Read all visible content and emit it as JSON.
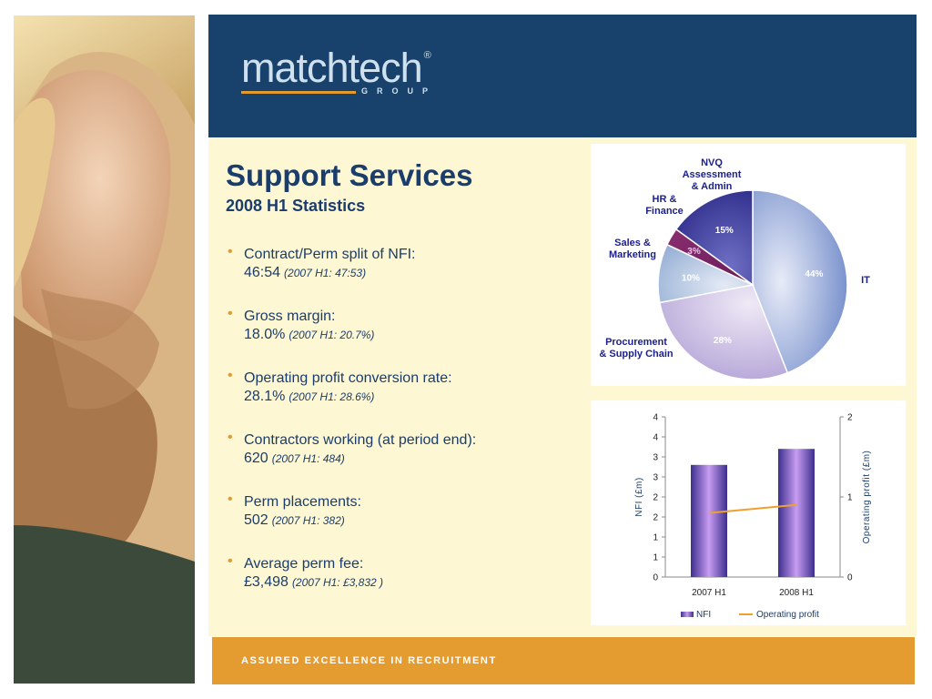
{
  "brand": {
    "logo_text": "matchtech",
    "logo_mark": "®",
    "logo_sub": "GROUP",
    "tagline": "ASSURED EXCELLENCE IN RECRUITMENT",
    "colors": {
      "navy": "#18426b",
      "orange": "#e29a2b",
      "cream": "#fdf7d4"
    }
  },
  "slide": {
    "title": "Support Services",
    "subtitle": "2008 H1 Statistics",
    "bullets": [
      {
        "label": "Contract/Perm split of NFI:",
        "value": "46:54",
        "note": "(2007 H1: 47:53)"
      },
      {
        "label": "Gross margin:",
        "value": "18.0%",
        "note": "(2007 H1: 20.7%)"
      },
      {
        "label": "Operating profit conversion rate:",
        "value": "28.1%",
        "note": "(2007 H1: 28.6%)"
      },
      {
        "label": "Contractors working (at period end):",
        "value": "620",
        "note": "(2007 H1: 484)"
      },
      {
        "label": "Perm placements:",
        "value": "502",
        "note": "(2007 H1: 382)"
      },
      {
        "label": "Average perm fee:",
        "value": "£3,498",
        "note": "(2007 H1: £3,832 )"
      }
    ]
  },
  "chart_data": [
    {
      "type": "pie",
      "slices": [
        {
          "label": "IT",
          "value": 44,
          "display": "44%"
        },
        {
          "label": "Procurement & Supply Chain",
          "value": 28,
          "display": "28%"
        },
        {
          "label": "Sales & Marketing",
          "value": 10,
          "display": "10%"
        },
        {
          "label": "HR & Finance",
          "value": 3,
          "display": "3%"
        },
        {
          "label": "NVQ Assessment & Admin",
          "value": 15,
          "display": "15%"
        }
      ]
    },
    {
      "type": "bar",
      "categories": [
        "2007 H1",
        "2008 H1"
      ],
      "series": [
        {
          "name": "NFI",
          "type": "bar",
          "axis": "left",
          "values": [
            2.8,
            3.2
          ]
        },
        {
          "name": "Operating profit",
          "type": "line",
          "axis": "right",
          "values": [
            0.8,
            0.9
          ]
        }
      ],
      "ylabel_left": "NFI (£m)",
      "ylabel_right": "Operating profit (£m)",
      "ylim_left": [
        0,
        4
      ],
      "ylim_right": [
        0,
        2
      ],
      "yticks_left": [
        "0",
        "1",
        "1",
        "2",
        "2",
        "3",
        "3",
        "4",
        "4"
      ],
      "yticks_right": [
        "0",
        "1",
        "2"
      ],
      "legend_position": "bottom"
    }
  ]
}
